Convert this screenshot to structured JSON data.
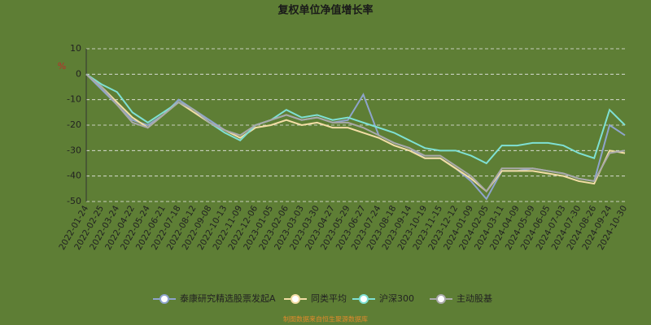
{
  "chart_data": {
    "type": "line",
    "title": "复权单位净值增长率",
    "y_label": "%",
    "source": "制图数据来自恒生聚源数据库",
    "categories": [
      "2022-01-24",
      "2022-02-25",
      "2022-03-24",
      "2022-04-22",
      "2022-05-24",
      "2022-06-21",
      "2022-07-18",
      "2022-08-12",
      "2022-09-08",
      "2022-10-13",
      "2022-11-09",
      "2022-12-06",
      "2023-01-05",
      "2023-02-06",
      "2023-03-03",
      "2023-03-30",
      "2023-04-27",
      "2023-05-29",
      "2023-06-27",
      "2023-07-24",
      "2023-08-18",
      "2023-09-14",
      "2023-10-19",
      "2023-11-15",
      "2023-12-12",
      "2024-01-09",
      "2024-02-05",
      "2024-03-11",
      "2024-04-09",
      "2024-05-09",
      "2024-06-05",
      "2024-07-03",
      "2024-07-30",
      "2024-08-26",
      "2024-09-24",
      "2024-10-30"
    ],
    "series": [
      {
        "name": "泰康研究精选股票发起A",
        "color": "#8ea4cc",
        "values": [
          0,
          -6,
          -12,
          -18,
          -20,
          -16,
          -10,
          -14,
          -18,
          -22,
          -24,
          -20,
          -18,
          -16,
          -18,
          -17,
          -19,
          -18,
          -8,
          -24,
          -27,
          -29,
          -33,
          -33,
          -37,
          -42,
          -49,
          -38,
          -38,
          -37,
          -38,
          -39,
          -41,
          -42,
          -20,
          -24
        ]
      },
      {
        "name": "同类平均",
        "color": "#f3dea6",
        "values": [
          0,
          -5,
          -11,
          -17,
          -21,
          -16,
          -11,
          -15,
          -19,
          -22,
          -25,
          -21,
          -20,
          -18,
          -20,
          -19,
          -21,
          -21,
          -23,
          -25,
          -28,
          -30,
          -33,
          -33,
          -37,
          -41,
          -46,
          -38,
          -38,
          -38,
          -39,
          -40,
          -42,
          -43,
          -30,
          -31
        ]
      },
      {
        "name": "沪深300",
        "color": "#7fe0d4",
        "values": [
          0,
          -4,
          -7,
          -15,
          -19,
          -15,
          -11,
          -14,
          -19,
          -23,
          -26,
          -20,
          -18,
          -14,
          -17,
          -16,
          -18,
          -17,
          -19,
          -21,
          -23,
          -26,
          -29,
          -30,
          -30,
          -32,
          -35,
          -28,
          -28,
          -27,
          -27,
          -28,
          -31,
          -33,
          -14,
          -20
        ]
      },
      {
        "name": "主动股基",
        "color": "#a9a9a9",
        "values": [
          0,
          -5,
          -12,
          -19,
          -21,
          -16,
          -11,
          -14,
          -19,
          -22,
          -24,
          -20,
          -18,
          -16,
          -18,
          -17,
          -19,
          -19,
          -21,
          -24,
          -27,
          -29,
          -32,
          -32,
          -36,
          -40,
          -46,
          -37,
          -37,
          -37,
          -38,
          -39,
          -41,
          -42,
          -31,
          -30
        ]
      }
    ],
    "ylim": [
      -50,
      10
    ],
    "yticks": [
      -50,
      -40,
      -30,
      -20,
      -10,
      0,
      10
    ],
    "grid": true
  }
}
